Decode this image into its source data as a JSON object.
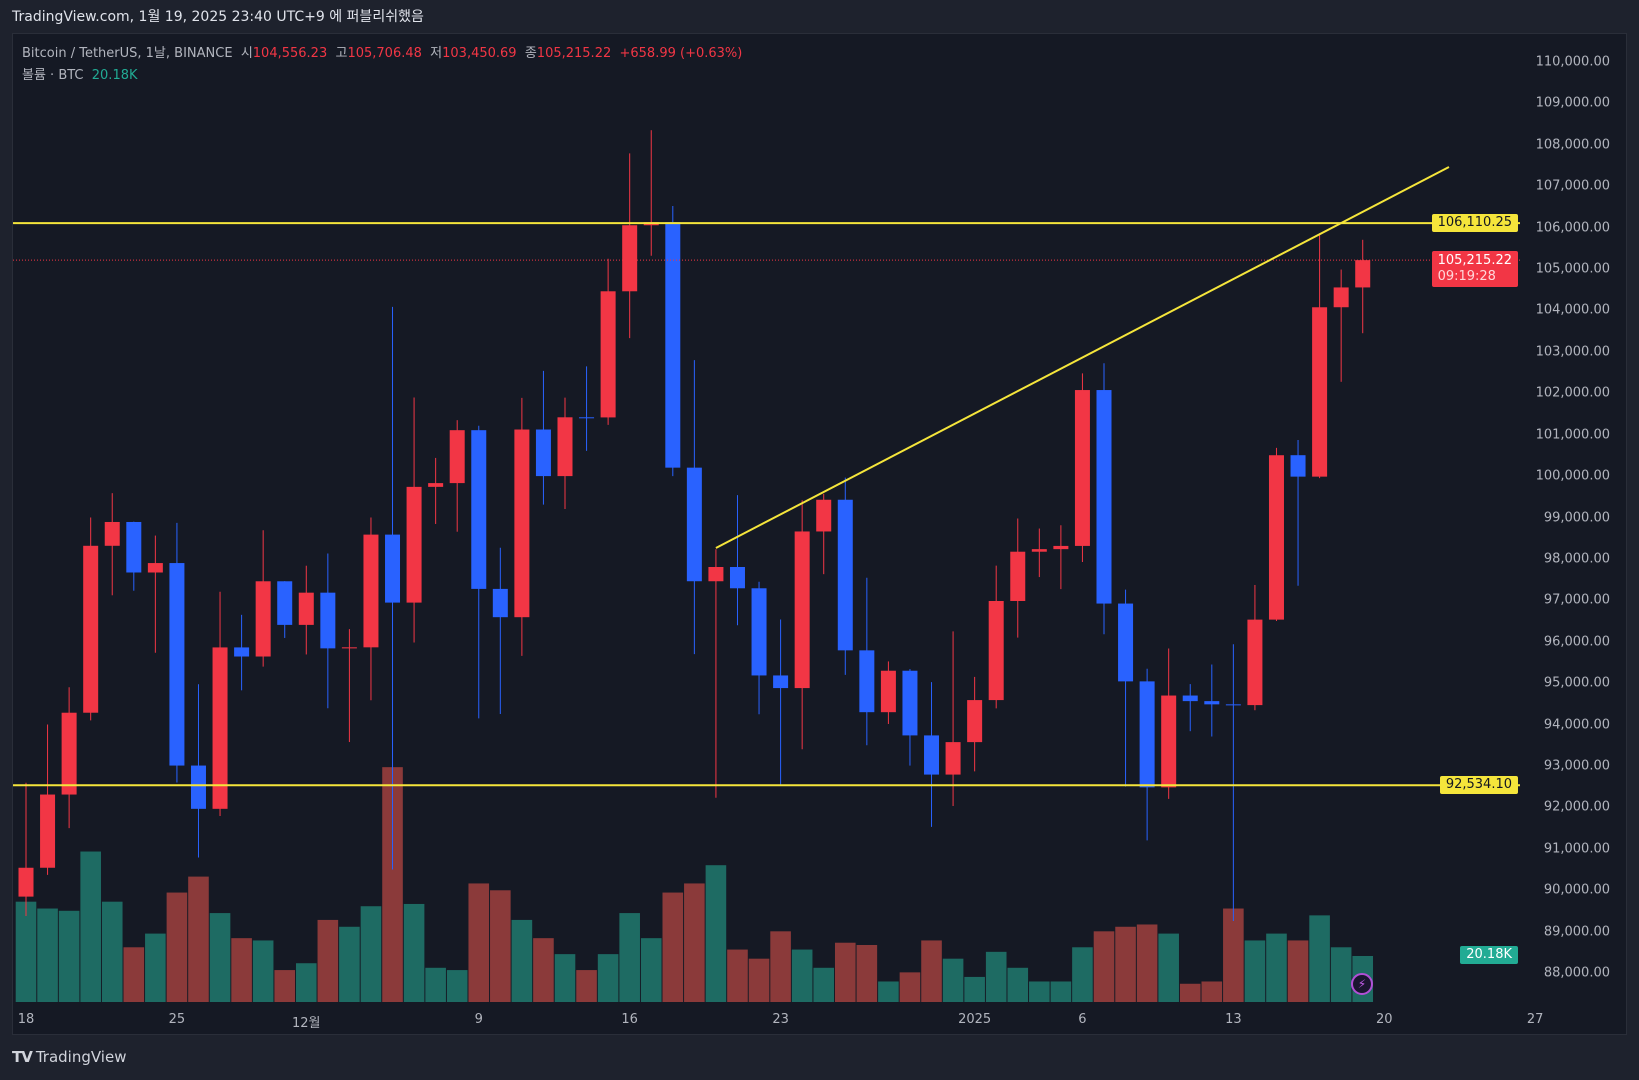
{
  "published": "TradingView.com, 1월 19, 2025 23:40 UTC+9 에 퍼블리쉬했음",
  "legend": {
    "symbol": "Bitcoin / TetherUS, 1날, BINANCE",
    "open_label": "시",
    "open": "104,556.23",
    "high_label": "고",
    "high": "105,706.48",
    "low_label": "저",
    "low": "103,450.69",
    "close_label": "종",
    "close": "105,215.22",
    "change": "+658.99 (+0.63%)",
    "volume_label": "볼륨 · BTC",
    "volume": "20.18K"
  },
  "badges": {
    "resistance": "106,110.25",
    "last_price": "105,215.22",
    "countdown": "09:19:28",
    "support": "92,534.10",
    "volume": "20.18K"
  },
  "footer": {
    "logo_text": "TradingView"
  },
  "colors": {
    "up": "#f23645",
    "down": "#2962ff",
    "vol_up": "#1e6b63",
    "vol_down": "#8b3a3a",
    "drawing": "#f5e53b",
    "background": "#151924"
  },
  "chart_data": {
    "type": "candlestick",
    "title": "Bitcoin / TetherUS, 1날, BINANCE",
    "ylim": [
      88000,
      110000
    ],
    "y_ticks": [
      "110,000.00",
      "109,000.00",
      "108,000.00",
      "107,000.00",
      "106,000.00",
      "105,000.00",
      "104,000.00",
      "103,000.00",
      "102,000.00",
      "101,000.00",
      "100,000.00",
      "99,000.00",
      "98,000.00",
      "97,000.00",
      "96,000.00",
      "95,000.00",
      "94,000.00",
      "93,000.00",
      "92,000.00",
      "91,000.00",
      "90,000.00",
      "89,000.00",
      "88,000.00"
    ],
    "x_ticks": [
      {
        "date": "2024-11-18",
        "label": "18"
      },
      {
        "date": "2024-11-25",
        "label": "25"
      },
      {
        "date": "2024-12-01",
        "label": "12월"
      },
      {
        "date": "2024-12-09",
        "label": "9"
      },
      {
        "date": "2024-12-16",
        "label": "16"
      },
      {
        "date": "2024-12-23",
        "label": "23"
      },
      {
        "date": "2025-01-01",
        "label": "2025"
      },
      {
        "date": "2025-01-06",
        "label": "6"
      },
      {
        "date": "2025-01-13",
        "label": "13"
      },
      {
        "date": "2025-01-20",
        "label": "20"
      },
      {
        "date": "2025-01-27",
        "label": "27"
      }
    ],
    "columns": [
      "date",
      "open",
      "high",
      "low",
      "close",
      "volume_k"
    ],
    "candles": [
      [
        "2024-11-18",
        89845,
        92594,
        89376,
        90542,
        44
      ],
      [
        "2024-11-19",
        90542,
        94000,
        90370,
        92310,
        41
      ],
      [
        "2024-11-20",
        92310,
        94902,
        91500,
        94286,
        40
      ],
      [
        "2024-11-21",
        94286,
        99000,
        94100,
        98317,
        66
      ],
      [
        "2024-11-22",
        98317,
        99588,
        97122,
        98892,
        44
      ],
      [
        "2024-11-23",
        98892,
        98900,
        97232,
        97672,
        24
      ],
      [
        "2024-11-24",
        97672,
        98564,
        95734,
        97900,
        30
      ],
      [
        "2024-11-25",
        97900,
        98871,
        92600,
        93010,
        48
      ],
      [
        "2024-11-26",
        93010,
        94973,
        90791,
        91965,
        55
      ],
      [
        "2024-11-27",
        91965,
        97208,
        91792,
        95863,
        39
      ],
      [
        "2024-11-28",
        95863,
        96650,
        94827,
        95643,
        28
      ],
      [
        "2024-11-29",
        95643,
        98693,
        95400,
        97460,
        27
      ],
      [
        "2024-11-30",
        97460,
        97463,
        96092,
        96407,
        14
      ],
      [
        "2024-12-01",
        96407,
        97836,
        95693,
        97185,
        17
      ],
      [
        "2024-12-02",
        97185,
        98130,
        94395,
        95840,
        36
      ],
      [
        "2024-12-03",
        95840,
        96305,
        93578,
        95865,
        33
      ],
      [
        "2024-12-04",
        95865,
        99000,
        94587,
        98587,
        42
      ],
      [
        "2024-12-05",
        98587,
        104088,
        90500,
        96945,
        103
      ],
      [
        "2024-12-06",
        96945,
        101898,
        95981,
        99740,
        43
      ],
      [
        "2024-12-07",
        99740,
        100439,
        98844,
        99831,
        15
      ],
      [
        "2024-12-08",
        99831,
        101351,
        98657,
        101109,
        14
      ],
      [
        "2024-12-09",
        101109,
        101215,
        94150,
        97276,
        52
      ],
      [
        "2024-12-10",
        97276,
        98270,
        94256,
        96593,
        49
      ],
      [
        "2024-12-11",
        96593,
        101888,
        95658,
        101125,
        36
      ],
      [
        "2024-12-12",
        101125,
        102540,
        99311,
        100000,
        28
      ],
      [
        "2024-12-13",
        100000,
        101895,
        99205,
        101420,
        21
      ],
      [
        "2024-12-14",
        101420,
        102650,
        100610,
        101417,
        14
      ],
      [
        "2024-12-15",
        101417,
        105250,
        101237,
        104463,
        21
      ],
      [
        "2024-12-16",
        104463,
        107793,
        103333,
        106058,
        39
      ],
      [
        "2024-12-17",
        106058,
        108353,
        105321,
        106133,
        28
      ],
      [
        "2024-12-18",
        106133,
        106524,
        100000,
        100204,
        48
      ],
      [
        "2024-12-19",
        100204,
        102800,
        95700,
        97461,
        52
      ],
      [
        "2024-12-20",
        97461,
        98233,
        92232,
        97805,
        60
      ],
      [
        "2024-12-21",
        97805,
        99540,
        96398,
        97291,
        23
      ],
      [
        "2024-12-22",
        97291,
        97448,
        94250,
        95186,
        19
      ],
      [
        "2024-12-23",
        95186,
        96538,
        92520,
        94881,
        31
      ],
      [
        "2024-12-24",
        94881,
        99416,
        93404,
        98663,
        23
      ],
      [
        "2024-12-25",
        98663,
        99569,
        97632,
        99429,
        15
      ],
      [
        "2024-12-26",
        99429,
        99963,
        95199,
        95792,
        26
      ],
      [
        "2024-12-27",
        95792,
        97544,
        93500,
        94299,
        25
      ],
      [
        "2024-12-28",
        94299,
        95525,
        94014,
        95300,
        9
      ],
      [
        "2024-12-29",
        95300,
        95340,
        93009,
        93738,
        13
      ],
      [
        "2024-12-30",
        93738,
        95024,
        91530,
        92792,
        27
      ],
      [
        "2024-12-31",
        92792,
        96250,
        92033,
        93576,
        19
      ],
      [
        "2025-01-01",
        93576,
        95151,
        92870,
        94591,
        11
      ],
      [
        "2025-01-02",
        94591,
        97839,
        94392,
        96984,
        22
      ],
      [
        "2025-01-03",
        96984,
        98976,
        96100,
        98174,
        15
      ],
      [
        "2025-01-04",
        98174,
        98734,
        97562,
        98236,
        9
      ],
      [
        "2025-01-05",
        98236,
        98813,
        97271,
        98314,
        9
      ],
      [
        "2025-01-06",
        98314,
        102482,
        97926,
        102078,
        24
      ],
      [
        "2025-01-07",
        102078,
        102724,
        96181,
        96922,
        31
      ],
      [
        "2025-01-08",
        96922,
        97258,
        92500,
        95043,
        33
      ],
      [
        "2025-01-09",
        95043,
        95349,
        91203,
        92484,
        34
      ],
      [
        "2025-01-10",
        92484,
        95836,
        92206,
        94701,
        30
      ],
      [
        "2025-01-11",
        94701,
        94977,
        93840,
        94566,
        8
      ],
      [
        "2025-01-12",
        94566,
        95450,
        93711,
        94488,
        9
      ],
      [
        "2025-01-13",
        94488,
        95940,
        89256,
        94470,
        41
      ],
      [
        "2025-01-14",
        94470,
        97371,
        94346,
        96534,
        27
      ],
      [
        "2025-01-15",
        96534,
        100681,
        96500,
        100504,
        30
      ],
      [
        "2025-01-16",
        100505,
        100873,
        97352,
        99987,
        27
      ],
      [
        "2025-01-17",
        99987,
        105865,
        99950,
        104077,
        38
      ],
      [
        "2025-01-18",
        104078,
        104988,
        102277,
        104556,
        24
      ],
      [
        "2025-01-19",
        104556.23,
        105706.48,
        103450.69,
        105215.22,
        20.18
      ]
    ],
    "horizontal_lines": [
      106110.25,
      92534.1
    ],
    "trendline": {
      "from": {
        "date": "2024-12-20",
        "price": 98264
      },
      "to": {
        "date": "2025-01-23",
        "price": 107464
      }
    },
    "last_price": 105215.22,
    "grid": false,
    "legend": "top-left"
  }
}
